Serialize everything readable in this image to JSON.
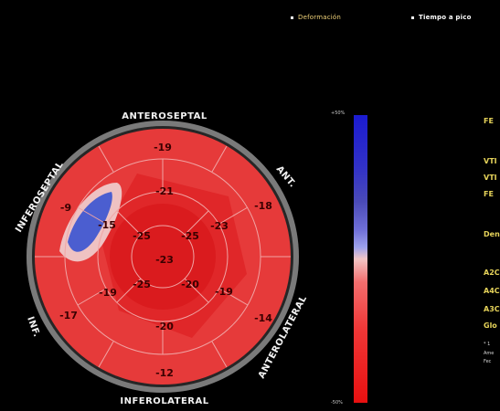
{
  "header": {
    "tabs": [
      {
        "label": "Deformación"
      },
      {
        "label": "Tiempo a pico"
      }
    ]
  },
  "bullseye": {
    "walls": {
      "anteroseptal": "ANTEROSEPTAL",
      "anterior": "ANT.",
      "anterolateral": "ANTEROLATERAL",
      "inferolateral": "INFEROLATERAL",
      "inferior": "INF.",
      "inferoseptal": "INFEROSEPTAL"
    },
    "basal_segments": [
      "-19",
      "-18",
      "-14",
      "-12",
      "-17",
      "-9"
    ],
    "mid_segments": [
      "-21",
      "-23",
      "-19",
      "-20",
      "-19",
      "-15"
    ],
    "apical_segments": [
      "-25",
      "-25",
      "-20",
      "-25"
    ],
    "apex": "-23",
    "colors": {
      "fill": "#e63a3a",
      "dark_fill": "#d9191b",
      "dyskinetic": "#4b5ed0",
      "grid": "#f0a4a4",
      "rim": "#8a8a8a"
    }
  },
  "scale": {
    "top_label": "+50%",
    "bottom_label": "-50%"
  },
  "side_panel": {
    "items": [
      "FE",
      "VTI",
      "VTI",
      "FE",
      "Den",
      "A2C",
      "A4C",
      "A3C",
      "Glo",
      "* 1",
      "Ame",
      "Fec"
    ]
  }
}
